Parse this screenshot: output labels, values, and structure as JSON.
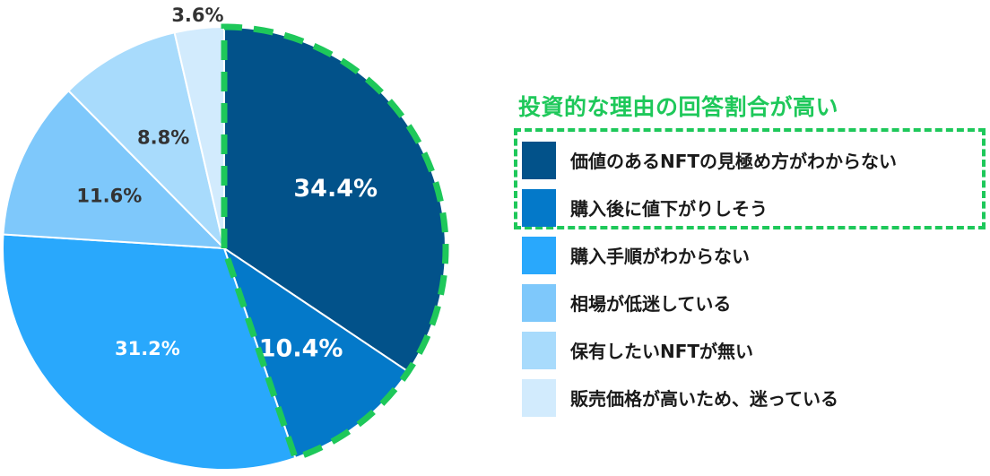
{
  "chart_data": {
    "type": "pie",
    "categories": [
      "価値のあるNFTの見極め方がわからない",
      "購入後に値下がりしそう",
      "購入手順がわからない",
      "相場が低迷している",
      "保有したいNFTが無い",
      "販売価格が高いため、迷っている"
    ],
    "values": [
      34.4,
      10.4,
      31.2,
      11.6,
      8.8,
      3.6
    ],
    "data_labels": [
      "34.4%",
      "10.4%",
      "31.2%",
      "11.6%",
      "8.8%",
      "3.6%"
    ],
    "colors": [
      "#02528a",
      "#0479c9",
      "#29a8fc",
      "#7ec8fb",
      "#a8dbfc",
      "#d2ebfd"
    ],
    "label_colors": [
      "#ffffff",
      "#ffffff",
      "#ffffff",
      "#333333",
      "#333333",
      "#333333"
    ],
    "start": "top, clockwise",
    "highlighted_categories": [
      "価値のあるNFTの見極め方がわからない",
      "購入後に値下がりしそう"
    ],
    "highlight_color": "#1ec85a",
    "legend_position": "right",
    "annotation": "投資的な理由の回答割合が高い"
  }
}
